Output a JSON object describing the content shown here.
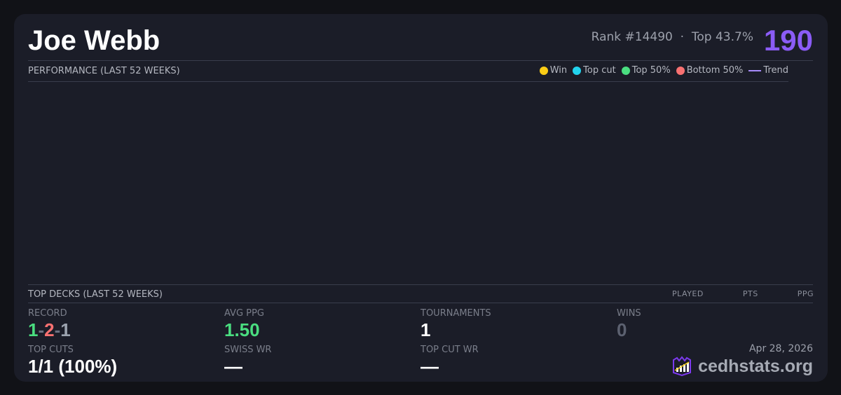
{
  "player": {
    "name": "Joe Webb",
    "rank": "Rank #14490",
    "sep": "·",
    "top": "Top 43.7%",
    "score": "190"
  },
  "performance": {
    "title": "PERFORMANCE (LAST 52 WEEKS)",
    "legend": [
      {
        "label": "Win",
        "color": "#facc15"
      },
      {
        "label": "Top cut",
        "color": "#22d3ee"
      },
      {
        "label": "Top 50%",
        "color": "#4ade80"
      },
      {
        "label": "Bottom 50%",
        "color": "#f87171"
      },
      {
        "label": "Trend",
        "color": "#a78bfa"
      }
    ]
  },
  "decks": {
    "title": "TOP DECKS (LAST 52 WEEKS)",
    "columns": [
      "PLAYED",
      "PTS",
      "PPG"
    ]
  },
  "stats": {
    "record": {
      "label": "RECORD",
      "wins": "1",
      "losses": "2",
      "draws": "1",
      "dash": "-"
    },
    "avg_ppg": {
      "label": "AVG PPG",
      "value": "1.50"
    },
    "tournaments": {
      "label": "TOURNAMENTS",
      "value": "1"
    },
    "wins": {
      "label": "WINS",
      "value": "0"
    },
    "top_cuts": {
      "label": "TOP CUTS",
      "value": "1/1 (100%)"
    },
    "swiss_wr": {
      "label": "SWISS WR",
      "value": "—"
    },
    "top_cut_wr": {
      "label": "TOP CUT WR",
      "value": "—"
    }
  },
  "footer": {
    "date": "Apr 28, 2026",
    "brand": "cedhstats.org"
  }
}
